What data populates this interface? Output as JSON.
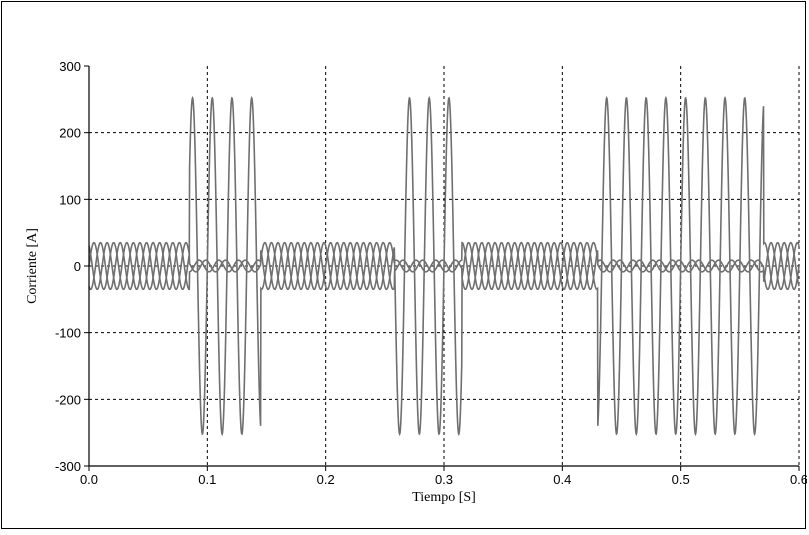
{
  "chart_data": {
    "type": "line",
    "title": "",
    "xlabel": "Tiempo [S]",
    "ylabel": "Corriente [A]",
    "xlim": [
      0.0,
      0.6
    ],
    "ylim": [
      -300,
      300
    ],
    "x_ticks": [
      0.0,
      0.1,
      0.2,
      0.3,
      0.4,
      0.5,
      0.6
    ],
    "x_tick_labels": [
      "0.0",
      "0.1",
      "0.2",
      "0.3",
      "0.4",
      "0.5",
      "0.6"
    ],
    "y_ticks": [
      300,
      200,
      100,
      0,
      -100,
      -200,
      -300
    ],
    "y_tick_labels": [
      "300",
      "200",
      "100",
      "0",
      "-100",
      "-200",
      "-300"
    ],
    "grid": true,
    "grid_style": "dotted",
    "legend": "none",
    "line_color": "#6f6f6f",
    "series": [
      {
        "normal_amplitude": 35,
        "frequency_hz": 60,
        "phase_shifts_deg": [
          0,
          120,
          240
        ],
        "fault_amplitude": 252,
        "fault_intervals": [
          [
            0.085,
            0.145
          ],
          [
            0.258,
            0.315
          ],
          [
            0.43,
            0.57
          ]
        ]
      }
    ]
  }
}
